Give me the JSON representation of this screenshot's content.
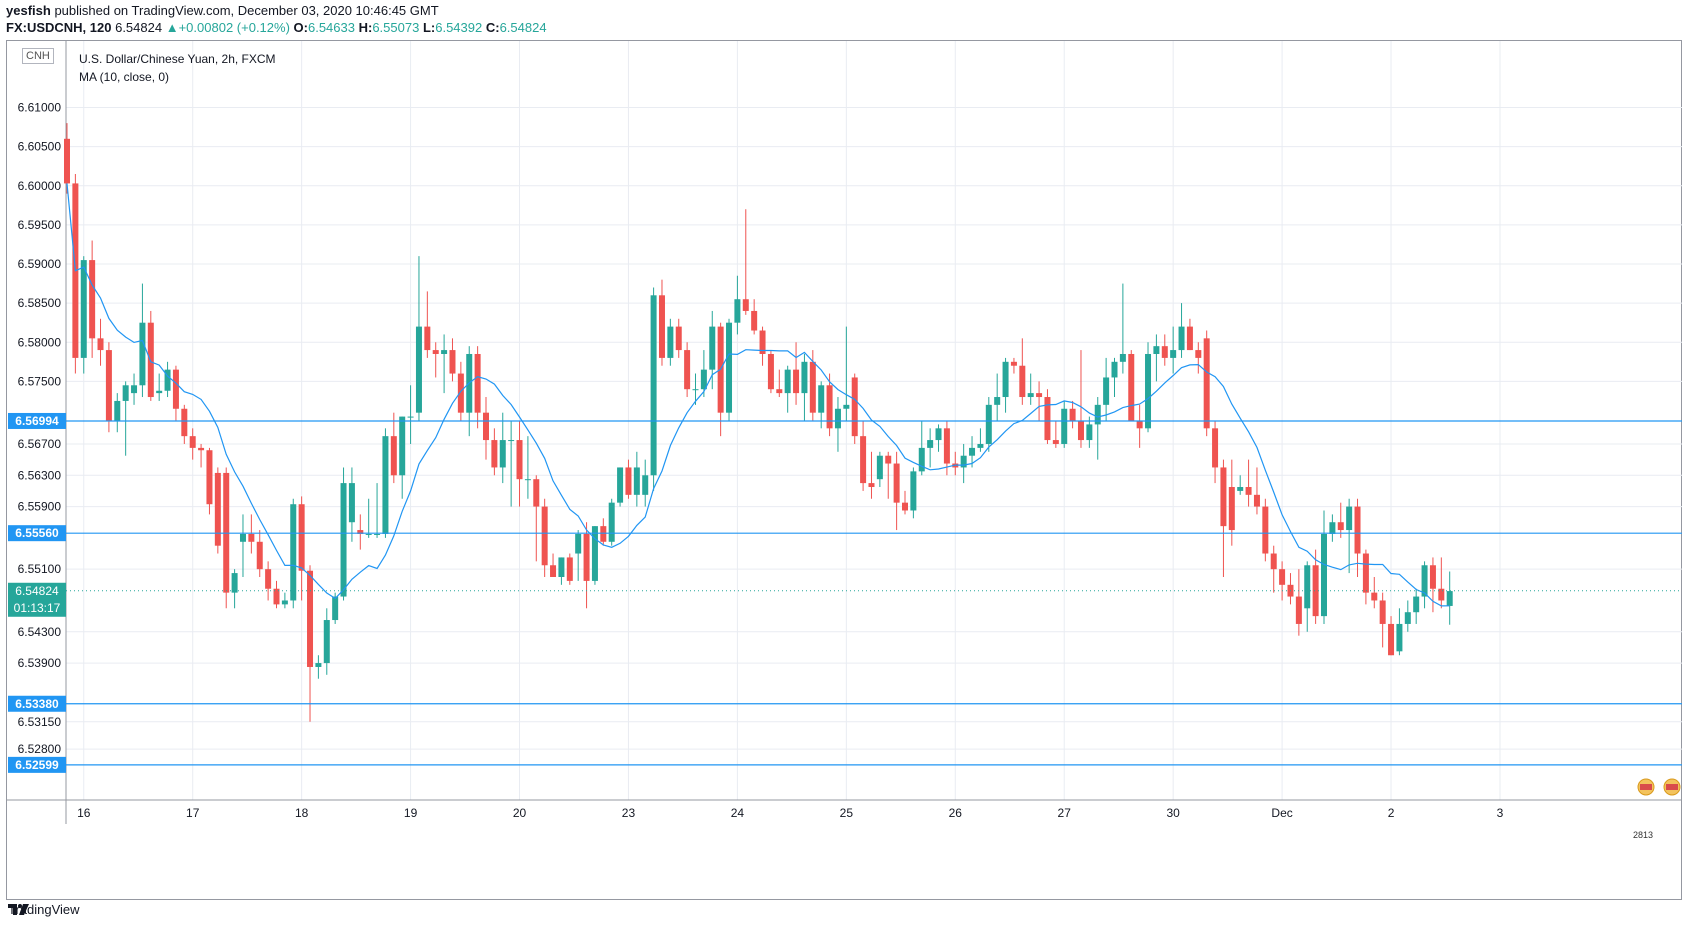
{
  "header": {
    "publisher": "yesfish",
    "published_text": "published on TradingView.com, December 03, 2020 10:46:45 GMT",
    "symbol": "FX:USDCNH, 120",
    "last": "6.54824",
    "change": "+0.00802 (+0.12%)",
    "open_label": "O:",
    "open": "6.54633",
    "high_label": "H:",
    "high": "6.55073",
    "low_label": "L:",
    "low": "6.54392",
    "close_label": "C:",
    "close": "6.54824"
  },
  "legend": {
    "title": "U.S. Dollar/Chinese Yuan, 2h, FXCM",
    "indicator": "MA (10, close, 0)",
    "currency": "CNH"
  },
  "footer": {
    "brand": "TradingView"
  },
  "corner_badge": "2813",
  "colors": {
    "up": "#26a69a",
    "down": "#ef5350",
    "ma": "#2196f3",
    "hline": "#2196f3",
    "grid": "#e9ecf2"
  },
  "chart_data": {
    "type": "candlestick",
    "title": "U.S. Dollar/Chinese Yuan, 2h, FXCM",
    "ylim": [
      6.5215,
      6.6185
    ],
    "y_ticks": [
      6.61,
      6.605,
      6.6,
      6.595,
      6.59,
      6.585,
      6.58,
      6.575,
      6.567,
      6.563,
      6.559,
      6.551,
      6.543,
      6.539,
      6.5315,
      6.528
    ],
    "x_ticks": [
      "16",
      "17",
      "18",
      "19",
      "20",
      "23",
      "24",
      "25",
      "26",
      "27",
      "30",
      "Dec",
      "2",
      "3"
    ],
    "horizontal_levels": [
      {
        "value": 6.56994,
        "label": "6.56994"
      },
      {
        "value": 6.5556,
        "label": "6.55560"
      },
      {
        "value": 6.5338,
        "label": "6.53380"
      },
      {
        "value": 6.52599,
        "label": "6.52599"
      }
    ],
    "last_price": {
      "value": 6.54824,
      "label": "6.54824",
      "countdown": "01:13:17"
    },
    "ma_period": 10,
    "candles": [
      {
        "o": 6.606,
        "h": 6.608,
        "l": 6.599,
        "c": 6.6003
      },
      {
        "o": 6.6003,
        "h": 6.6015,
        "l": 6.576,
        "c": 6.578
      },
      {
        "o": 6.578,
        "h": 6.591,
        "l": 6.576,
        "c": 6.5905
      },
      {
        "o": 6.5905,
        "h": 6.593,
        "l": 6.578,
        "c": 6.5805
      },
      {
        "o": 6.5805,
        "h": 6.583,
        "l": 6.577,
        "c": 6.579
      },
      {
        "o": 6.579,
        "h": 6.58,
        "l": 6.5685,
        "c": 6.57
      },
      {
        "o": 6.57,
        "h": 6.5735,
        "l": 6.5685,
        "c": 6.5725
      },
      {
        "o": 6.5725,
        "h": 6.575,
        "l": 6.5655,
        "c": 6.5745
      },
      {
        "o": 6.5735,
        "h": 6.576,
        "l": 6.572,
        "c": 6.5745
      },
      {
        "o": 6.5745,
        "h": 6.5875,
        "l": 6.573,
        "c": 6.5825
      },
      {
        "o": 6.5825,
        "h": 6.584,
        "l": 6.5725,
        "c": 6.573
      },
      {
        "o": 6.5735,
        "h": 6.576,
        "l": 6.5725,
        "c": 6.5738
      },
      {
        "o": 6.5738,
        "h": 6.5775,
        "l": 6.573,
        "c": 6.5765
      },
      {
        "o": 6.5765,
        "h": 6.577,
        "l": 6.57,
        "c": 6.5715
      },
      {
        "o": 6.5715,
        "h": 6.572,
        "l": 6.567,
        "c": 6.568
      },
      {
        "o": 6.568,
        "h": 6.569,
        "l": 6.565,
        "c": 6.5665
      },
      {
        "o": 6.5665,
        "h": 6.567,
        "l": 6.564,
        "c": 6.5662
      },
      {
        "o": 6.5662,
        "h": 6.5665,
        "l": 6.558,
        "c": 6.5593
      },
      {
        "o": 6.5633,
        "h": 6.564,
        "l": 6.553,
        "c": 6.554
      },
      {
        "o": 6.5633,
        "h": 6.564,
        "l": 6.546,
        "c": 6.548
      },
      {
        "o": 6.548,
        "h": 6.551,
        "l": 6.546,
        "c": 6.5505
      },
      {
        "o": 6.5545,
        "h": 6.558,
        "l": 6.55,
        "c": 6.5555
      },
      {
        "o": 6.5555,
        "h": 6.558,
        "l": 6.553,
        "c": 6.5545
      },
      {
        "o": 6.5545,
        "h": 6.556,
        "l": 6.55,
        "c": 6.551
      },
      {
        "o": 6.551,
        "h": 6.552,
        "l": 6.547,
        "c": 6.5485
      },
      {
        "o": 6.5485,
        "h": 6.5495,
        "l": 6.546,
        "c": 6.5465
      },
      {
        "o": 6.5465,
        "h": 6.548,
        "l": 6.546,
        "c": 6.547
      },
      {
        "o": 6.547,
        "h": 6.56,
        "l": 6.546,
        "c": 6.5593
      },
      {
        "o": 6.5593,
        "h": 6.5603,
        "l": 6.547,
        "c": 6.5508
      },
      {
        "o": 6.5508,
        "h": 6.5515,
        "l": 6.5315,
        "c": 6.5385
      },
      {
        "o": 6.5385,
        "h": 6.54,
        "l": 6.537,
        "c": 6.539
      },
      {
        "o": 6.539,
        "h": 6.546,
        "l": 6.5375,
        "c": 6.5445
      },
      {
        "o": 6.5445,
        "h": 6.548,
        "l": 6.544,
        "c": 6.5475
      },
      {
        "o": 6.5475,
        "h": 6.564,
        "l": 6.547,
        "c": 6.562
      },
      {
        "o": 6.557,
        "h": 6.564,
        "l": 6.5545,
        "c": 6.562
      },
      {
        "o": 6.556,
        "h": 6.558,
        "l": 6.5535,
        "c": 6.5555
      },
      {
        "o": 6.5555,
        "h": 6.56,
        "l": 6.555,
        "c": 6.5555
      },
      {
        "o": 6.5555,
        "h": 6.562,
        "l": 6.555,
        "c": 6.5555
      },
      {
        "o": 6.5555,
        "h": 6.569,
        "l": 6.555,
        "c": 6.568
      },
      {
        "o": 6.568,
        "h": 6.571,
        "l": 6.562,
        "c": 6.563
      },
      {
        "o": 6.563,
        "h": 6.5705,
        "l": 6.56,
        "c": 6.5705
      },
      {
        "o": 6.5705,
        "h": 6.5745,
        "l": 6.567,
        "c": 6.5705
      },
      {
        "o": 6.571,
        "h": 6.591,
        "l": 6.57,
        "c": 6.582
      },
      {
        "o": 6.582,
        "h": 6.5865,
        "l": 6.578,
        "c": 6.579
      },
      {
        "o": 6.579,
        "h": 6.58,
        "l": 6.5755,
        "c": 6.5785
      },
      {
        "o": 6.5785,
        "h": 6.581,
        "l": 6.5735,
        "c": 6.579
      },
      {
        "o": 6.579,
        "h": 6.5805,
        "l": 6.575,
        "c": 6.576
      },
      {
        "o": 6.576,
        "h": 6.5775,
        "l": 6.57,
        "c": 6.571
      },
      {
        "o": 6.571,
        "h": 6.5795,
        "l": 6.568,
        "c": 6.5785
      },
      {
        "o": 6.5785,
        "h": 6.5795,
        "l": 6.569,
        "c": 6.571
      },
      {
        "o": 6.571,
        "h": 6.573,
        "l": 6.565,
        "c": 6.5675
      },
      {
        "o": 6.5675,
        "h": 6.569,
        "l": 6.563,
        "c": 6.564
      },
      {
        "o": 6.564,
        "h": 6.571,
        "l": 6.562,
        "c": 6.5675
      },
      {
        "o": 6.5675,
        "h": 6.57,
        "l": 6.559,
        "c": 6.5675
      },
      {
        "o": 6.5675,
        "h": 6.57,
        "l": 6.559,
        "c": 6.5625
      },
      {
        "o": 6.5625,
        "h": 6.568,
        "l": 6.56,
        "c": 6.5625
      },
      {
        "o": 6.5625,
        "h": 6.563,
        "l": 6.552,
        "c": 6.559
      },
      {
        "o": 6.559,
        "h": 6.56,
        "l": 6.55,
        "c": 6.5515
      },
      {
        "o": 6.5515,
        "h": 6.553,
        "l": 6.55,
        "c": 6.55
      },
      {
        "o": 6.55,
        "h": 6.5525,
        "l": 6.549,
        "c": 6.5525
      },
      {
        "o": 6.5525,
        "h": 6.553,
        "l": 6.549,
        "c": 6.5495
      },
      {
        "o": 6.553,
        "h": 6.556,
        "l": 6.5495,
        "c": 6.5555
      },
      {
        "o": 6.5555,
        "h": 6.557,
        "l": 6.546,
        "c": 6.5495
      },
      {
        "o": 6.5495,
        "h": 6.5565,
        "l": 6.549,
        "c": 6.5565
      },
      {
        "o": 6.5565,
        "h": 6.5575,
        "l": 6.554,
        "c": 6.5545
      },
      {
        "o": 6.5545,
        "h": 6.56,
        "l": 6.554,
        "c": 6.5595
      },
      {
        "o": 6.5595,
        "h": 6.564,
        "l": 6.559,
        "c": 6.564
      },
      {
        "o": 6.564,
        "h": 6.565,
        "l": 6.56,
        "c": 6.5605
      },
      {
        "o": 6.5605,
        "h": 6.566,
        "l": 6.559,
        "c": 6.564
      },
      {
        "o": 6.5605,
        "h": 6.565,
        "l": 6.559,
        "c": 6.563
      },
      {
        "o": 6.563,
        "h": 6.587,
        "l": 6.561,
        "c": 6.586
      },
      {
        "o": 6.586,
        "h": 6.588,
        "l": 6.577,
        "c": 6.578
      },
      {
        "o": 6.578,
        "h": 6.583,
        "l": 6.577,
        "c": 6.582
      },
      {
        "o": 6.582,
        "h": 6.583,
        "l": 6.578,
        "c": 6.579
      },
      {
        "o": 6.579,
        "h": 6.58,
        "l": 6.573,
        "c": 6.574
      },
      {
        "o": 6.574,
        "h": 6.576,
        "l": 6.572,
        "c": 6.574
      },
      {
        "o": 6.574,
        "h": 6.579,
        "l": 6.573,
        "c": 6.5765
      },
      {
        "o": 6.5765,
        "h": 6.584,
        "l": 6.574,
        "c": 6.582
      },
      {
        "o": 6.582,
        "h": 6.5825,
        "l": 6.568,
        "c": 6.571
      },
      {
        "o": 6.571,
        "h": 6.583,
        "l": 6.57,
        "c": 6.5825
      },
      {
        "o": 6.5825,
        "h": 6.5885,
        "l": 6.581,
        "c": 6.5855
      },
      {
        "o": 6.5855,
        "h": 6.597,
        "l": 6.5835,
        "c": 6.584
      },
      {
        "o": 6.584,
        "h": 6.5855,
        "l": 6.581,
        "c": 6.5815
      },
      {
        "o": 6.5815,
        "h": 6.582,
        "l": 6.577,
        "c": 6.5785
      },
      {
        "o": 6.5785,
        "h": 6.579,
        "l": 6.5735,
        "c": 6.574
      },
      {
        "o": 6.574,
        "h": 6.5765,
        "l": 6.573,
        "c": 6.5735
      },
      {
        "o": 6.5735,
        "h": 6.577,
        "l": 6.571,
        "c": 6.5765
      },
      {
        "o": 6.5765,
        "h": 6.58,
        "l": 6.572,
        "c": 6.5735
      },
      {
        "o": 6.5735,
        "h": 6.5785,
        "l": 6.57,
        "c": 6.5775
      },
      {
        "o": 6.5775,
        "h": 6.579,
        "l": 6.57,
        "c": 6.571
      },
      {
        "o": 6.571,
        "h": 6.575,
        "l": 6.569,
        "c": 6.5745
      },
      {
        "o": 6.5745,
        "h": 6.576,
        "l": 6.568,
        "c": 6.569
      },
      {
        "o": 6.569,
        "h": 6.573,
        "l": 6.566,
        "c": 6.5715
      },
      {
        "o": 6.5715,
        "h": 6.582,
        "l": 6.57,
        "c": 6.572
      },
      {
        "o": 6.5755,
        "h": 6.576,
        "l": 6.567,
        "c": 6.568
      },
      {
        "o": 6.568,
        "h": 6.57,
        "l": 6.561,
        "c": 6.562
      },
      {
        "o": 6.562,
        "h": 6.566,
        "l": 6.56,
        "c": 6.5615
      },
      {
        "o": 6.5625,
        "h": 6.566,
        "l": 6.5615,
        "c": 6.5655
      },
      {
        "o": 6.5655,
        "h": 6.566,
        "l": 6.56,
        "c": 6.5645
      },
      {
        "o": 6.5645,
        "h": 6.566,
        "l": 6.556,
        "c": 6.5595
      },
      {
        "o": 6.5595,
        "h": 6.561,
        "l": 6.558,
        "c": 6.5585
      },
      {
        "o": 6.5585,
        "h": 6.564,
        "l": 6.5575,
        "c": 6.5635
      },
      {
        "o": 6.5635,
        "h": 6.57,
        "l": 6.563,
        "c": 6.5665
      },
      {
        "o": 6.5665,
        "h": 6.569,
        "l": 6.564,
        "c": 6.5675
      },
      {
        "o": 6.5675,
        "h": 6.5695,
        "l": 6.566,
        "c": 6.569
      },
      {
        "o": 6.569,
        "h": 6.57,
        "l": 6.563,
        "c": 6.5645
      },
      {
        "o": 6.5645,
        "h": 6.566,
        "l": 6.563,
        "c": 6.564
      },
      {
        "o": 6.564,
        "h": 6.567,
        "l": 6.562,
        "c": 6.5655
      },
      {
        "o": 6.5655,
        "h": 6.568,
        "l": 6.564,
        "c": 6.5665
      },
      {
        "o": 6.5665,
        "h": 6.569,
        "l": 6.566,
        "c": 6.567
      },
      {
        "o": 6.567,
        "h": 6.573,
        "l": 6.566,
        "c": 6.572
      },
      {
        "o": 6.572,
        "h": 6.576,
        "l": 6.57,
        "c": 6.573
      },
      {
        "o": 6.573,
        "h": 6.578,
        "l": 6.571,
        "c": 6.5775
      },
      {
        "o": 6.5775,
        "h": 6.578,
        "l": 6.576,
        "c": 6.577
      },
      {
        "o": 6.577,
        "h": 6.5805,
        "l": 6.572,
        "c": 6.573
      },
      {
        "o": 6.573,
        "h": 6.576,
        "l": 6.572,
        "c": 6.5735
      },
      {
        "o": 6.5735,
        "h": 6.575,
        "l": 6.57,
        "c": 6.573
      },
      {
        "o": 6.573,
        "h": 6.574,
        "l": 6.567,
        "c": 6.5675
      },
      {
        "o": 6.5675,
        "h": 6.57,
        "l": 6.5665,
        "c": 6.567
      },
      {
        "o": 6.567,
        "h": 6.5725,
        "l": 6.5665,
        "c": 6.5715
      },
      {
        "o": 6.5715,
        "h": 6.5725,
        "l": 6.569,
        "c": 6.57
      },
      {
        "o": 6.57,
        "h": 6.579,
        "l": 6.5665,
        "c": 6.5675
      },
      {
        "o": 6.5675,
        "h": 6.5705,
        "l": 6.5665,
        "c": 6.5695
      },
      {
        "o": 6.5695,
        "h": 6.573,
        "l": 6.565,
        "c": 6.572
      },
      {
        "o": 6.572,
        "h": 6.578,
        "l": 6.57,
        "c": 6.5755
      },
      {
        "o": 6.5755,
        "h": 6.578,
        "l": 6.573,
        "c": 6.5775
      },
      {
        "o": 6.5775,
        "h": 6.5875,
        "l": 6.576,
        "c": 6.5785
      },
      {
        "o": 6.5785,
        "h": 6.579,
        "l": 6.57,
        "c": 6.57
      },
      {
        "o": 6.57,
        "h": 6.572,
        "l": 6.5665,
        "c": 6.569
      },
      {
        "o": 6.569,
        "h": 6.58,
        "l": 6.5685,
        "c": 6.5785
      },
      {
        "o": 6.5785,
        "h": 6.581,
        "l": 6.575,
        "c": 6.5795
      },
      {
        "o": 6.5795,
        "h": 6.581,
        "l": 6.577,
        "c": 6.578
      },
      {
        "o": 6.578,
        "h": 6.582,
        "l": 6.576,
        "c": 6.579
      },
      {
        "o": 6.579,
        "h": 6.585,
        "l": 6.578,
        "c": 6.582
      },
      {
        "o": 6.582,
        "h": 6.583,
        "l": 6.579,
        "c": 6.579
      },
      {
        "o": 6.579,
        "h": 6.58,
        "l": 6.576,
        "c": 6.578
      },
      {
        "o": 6.5805,
        "h": 6.5815,
        "l": 6.568,
        "c": 6.569
      },
      {
        "o": 6.569,
        "h": 6.57,
        "l": 6.562,
        "c": 6.564
      },
      {
        "o": 6.564,
        "h": 6.565,
        "l": 6.55,
        "c": 6.5565
      },
      {
        "o": 6.5615,
        "h": 6.565,
        "l": 6.554,
        "c": 6.556
      },
      {
        "o": 6.561,
        "h": 6.563,
        "l": 6.5605,
        "c": 6.5615
      },
      {
        "o": 6.5615,
        "h": 6.565,
        "l": 6.559,
        "c": 6.5605
      },
      {
        "o": 6.5605,
        "h": 6.564,
        "l": 6.558,
        "c": 6.559
      },
      {
        "o": 6.559,
        "h": 6.56,
        "l": 6.552,
        "c": 6.553
      },
      {
        "o": 6.553,
        "h": 6.554,
        "l": 6.548,
        "c": 6.551
      },
      {
        "o": 6.551,
        "h": 6.552,
        "l": 6.547,
        "c": 6.549
      },
      {
        "o": 6.549,
        "h": 6.5505,
        "l": 6.5465,
        "c": 6.5475
      },
      {
        "o": 6.5475,
        "h": 6.551,
        "l": 6.5425,
        "c": 6.544
      },
      {
        "o": 6.546,
        "h": 6.552,
        "l": 6.543,
        "c": 6.5515
      },
      {
        "o": 6.5515,
        "h": 6.5535,
        "l": 6.544,
        "c": 6.545
      },
      {
        "o": 6.545,
        "h": 6.5585,
        "l": 6.544,
        "c": 6.5555
      },
      {
        "o": 6.5555,
        "h": 6.558,
        "l": 6.5545,
        "c": 6.557
      },
      {
        "o": 6.557,
        "h": 6.5595,
        "l": 6.555,
        "c": 6.556
      },
      {
        "o": 6.556,
        "h": 6.56,
        "l": 6.5505,
        "c": 6.559
      },
      {
        "o": 6.559,
        "h": 6.56,
        "l": 6.55,
        "c": 6.553
      },
      {
        "o": 6.553,
        "h": 6.5535,
        "l": 6.5465,
        "c": 6.548
      },
      {
        "o": 6.548,
        "h": 6.55,
        "l": 6.546,
        "c": 6.547
      },
      {
        "o": 6.547,
        "h": 6.548,
        "l": 6.541,
        "c": 6.544
      },
      {
        "o": 6.544,
        "h": 6.545,
        "l": 6.54,
        "c": 6.54
      },
      {
        "o": 6.5405,
        "h": 6.546,
        "l": 6.54,
        "c": 6.544
      },
      {
        "o": 6.544,
        "h": 6.547,
        "l": 6.543,
        "c": 6.5455
      },
      {
        "o": 6.5455,
        "h": 6.5485,
        "l": 6.544,
        "c": 6.5475
      },
      {
        "o": 6.5475,
        "h": 6.552,
        "l": 6.546,
        "c": 6.5515
      },
      {
        "o": 6.5515,
        "h": 6.5525,
        "l": 6.5455,
        "c": 6.5485
      },
      {
        "o": 6.5485,
        "h": 6.5525,
        "l": 6.546,
        "c": 6.547
      },
      {
        "o": 6.5463,
        "h": 6.5507,
        "l": 6.5439,
        "c": 6.5482
      }
    ]
  }
}
